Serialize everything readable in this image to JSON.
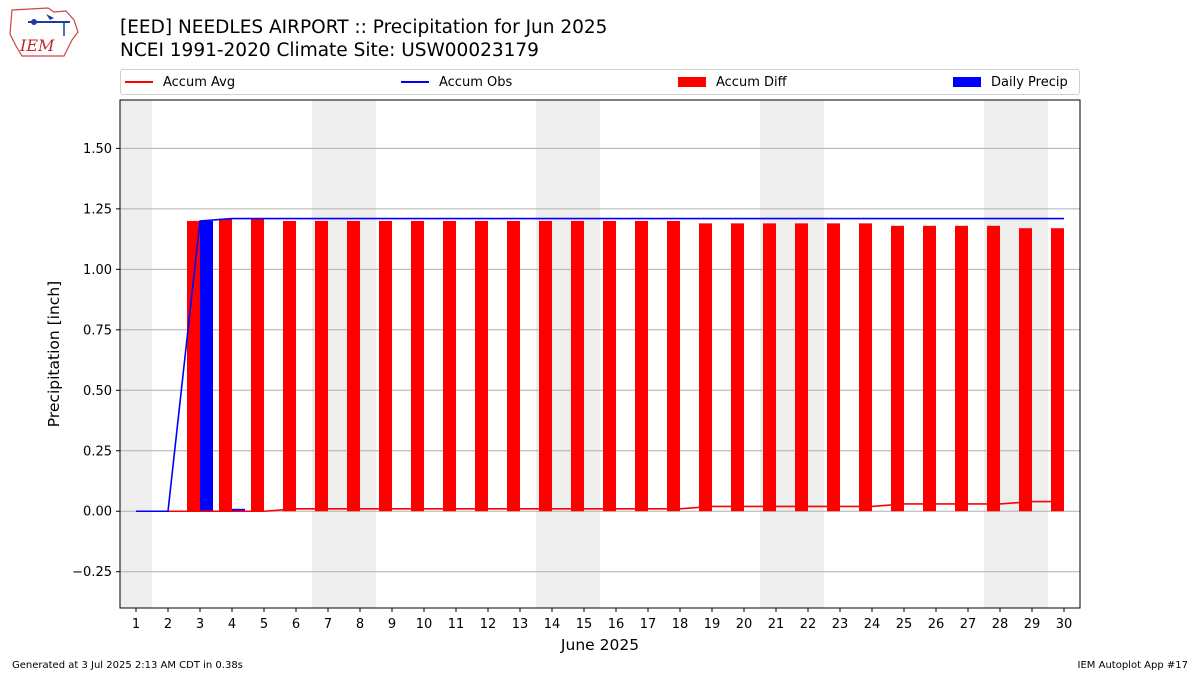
{
  "title": "[EED] NEEDLES AIRPORT :: Precipitation for Jun 2025",
  "subtitle": "NCEI 1991-2020 Climate Site: USW00023179",
  "footer_left": "Generated at 3 Jul 2025 2:13 AM CDT in 0.38s",
  "footer_right": "IEM Autoplot App #17",
  "logo_text": "IEM",
  "colors": {
    "avg": "#ff0000",
    "obs": "#0000ff",
    "diff": "#ff0000",
    "daily": "#0000ff",
    "weekend": "#eeeeee",
    "grid": "#b0b0b0"
  },
  "legend": [
    {
      "label": "Accum Avg",
      "kind": "line",
      "color": "#ff0000"
    },
    {
      "label": "Accum Obs",
      "kind": "line",
      "color": "#0000ff"
    },
    {
      "label": "Accum Diff",
      "kind": "box",
      "color": "#ff0000"
    },
    {
      "label": "Daily Precip",
      "kind": "box",
      "color": "#0000ff"
    }
  ],
  "chart_data": {
    "type": "bar",
    "xlabel": "June 2025",
    "ylabel": "Precipitation [inch]",
    "ylim": [
      -0.4,
      1.7
    ],
    "grid": true,
    "legend_position": "top",
    "x": [
      1,
      2,
      3,
      4,
      5,
      6,
      7,
      8,
      9,
      10,
      11,
      12,
      13,
      14,
      15,
      16,
      17,
      18,
      19,
      20,
      21,
      22,
      23,
      24,
      25,
      26,
      27,
      28,
      29,
      30
    ],
    "y_ticks": [
      "−0.25",
      "0.00",
      "0.25",
      "0.50",
      "0.75",
      "1.00",
      "1.25",
      "1.50"
    ],
    "y_tick_values": [
      -0.25,
      0,
      0.25,
      0.5,
      0.75,
      1.0,
      1.25,
      1.5
    ],
    "weekend_days": [
      1,
      7,
      8,
      14,
      15,
      21,
      22,
      28,
      29
    ],
    "series": [
      {
        "name": "Accum Avg",
        "type": "line",
        "values": [
          0,
          0,
          0,
          0,
          0,
          0.01,
          0.01,
          0.01,
          0.01,
          0.01,
          0.01,
          0.01,
          0.01,
          0.01,
          0.01,
          0.01,
          0.01,
          0.01,
          0.02,
          0.02,
          0.02,
          0.02,
          0.02,
          0.02,
          0.03,
          0.03,
          0.03,
          0.03,
          0.04,
          0.04
        ]
      },
      {
        "name": "Accum Obs",
        "type": "line",
        "values": [
          0,
          0,
          1.2,
          1.21,
          1.21,
          1.21,
          1.21,
          1.21,
          1.21,
          1.21,
          1.21,
          1.21,
          1.21,
          1.21,
          1.21,
          1.21,
          1.21,
          1.21,
          1.21,
          1.21,
          1.21,
          1.21,
          1.21,
          1.21,
          1.21,
          1.21,
          1.21,
          1.21,
          1.21,
          1.21
        ]
      },
      {
        "name": "Accum Diff",
        "type": "bar",
        "values": [
          0,
          0,
          1.2,
          1.21,
          1.21,
          1.2,
          1.2,
          1.2,
          1.2,
          1.2,
          1.2,
          1.2,
          1.2,
          1.2,
          1.2,
          1.2,
          1.2,
          1.2,
          1.19,
          1.19,
          1.19,
          1.19,
          1.19,
          1.19,
          1.18,
          1.18,
          1.18,
          1.18,
          1.17,
          1.17
        ]
      },
      {
        "name": "Daily Precip",
        "type": "bar",
        "values": [
          0,
          0,
          1.2,
          0.01,
          0,
          0,
          0,
          0,
          0,
          0,
          0,
          0,
          0,
          0,
          0,
          0,
          0,
          0,
          0,
          0,
          0,
          0,
          0,
          0,
          0,
          0,
          0,
          0,
          0,
          0
        ]
      }
    ]
  }
}
